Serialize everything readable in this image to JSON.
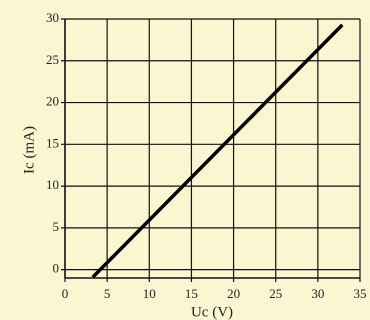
{
  "chart_data": {
    "type": "line",
    "x_label": "Uc (V)",
    "y_label": "Ic (mA)",
    "x": [
      3.3,
      32.9
    ],
    "series": [
      {
        "values": [
          -0.9,
          29.3
        ],
        "color": "#000000"
      }
    ],
    "xlim": [
      0,
      35
    ],
    "xticks": [
      0,
      5,
      10,
      15,
      20,
      25,
      30,
      35
    ],
    "ylim": [
      -1,
      30
    ],
    "yticks": [
      0,
      5,
      10,
      15,
      20,
      25,
      30
    ],
    "grid": true
  }
}
